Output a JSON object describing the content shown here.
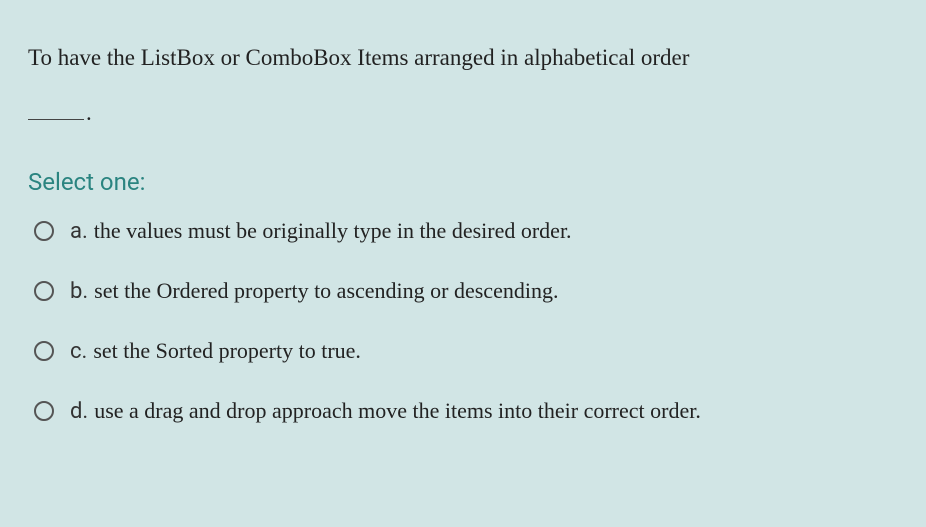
{
  "colors": {
    "background": "#d1e5e5",
    "question_text": "#222222",
    "prompt_text": "#2a8480",
    "radio_border": "#555555"
  },
  "question": {
    "text_line1": "To have the ListBox or ComboBox Items arranged in alphabetical order",
    "text_after_blank": ".",
    "prompt": "Select one:"
  },
  "options": [
    {
      "letter": "a.",
      "text": "the values must be originally type in the desired order."
    },
    {
      "letter": "b.",
      "text": "set the Ordered property to ascending or descending."
    },
    {
      "letter": "c.",
      "text": "set the Sorted property to true."
    },
    {
      "letter": "d.",
      "text": "use a drag and drop approach move the items into their correct order."
    }
  ]
}
